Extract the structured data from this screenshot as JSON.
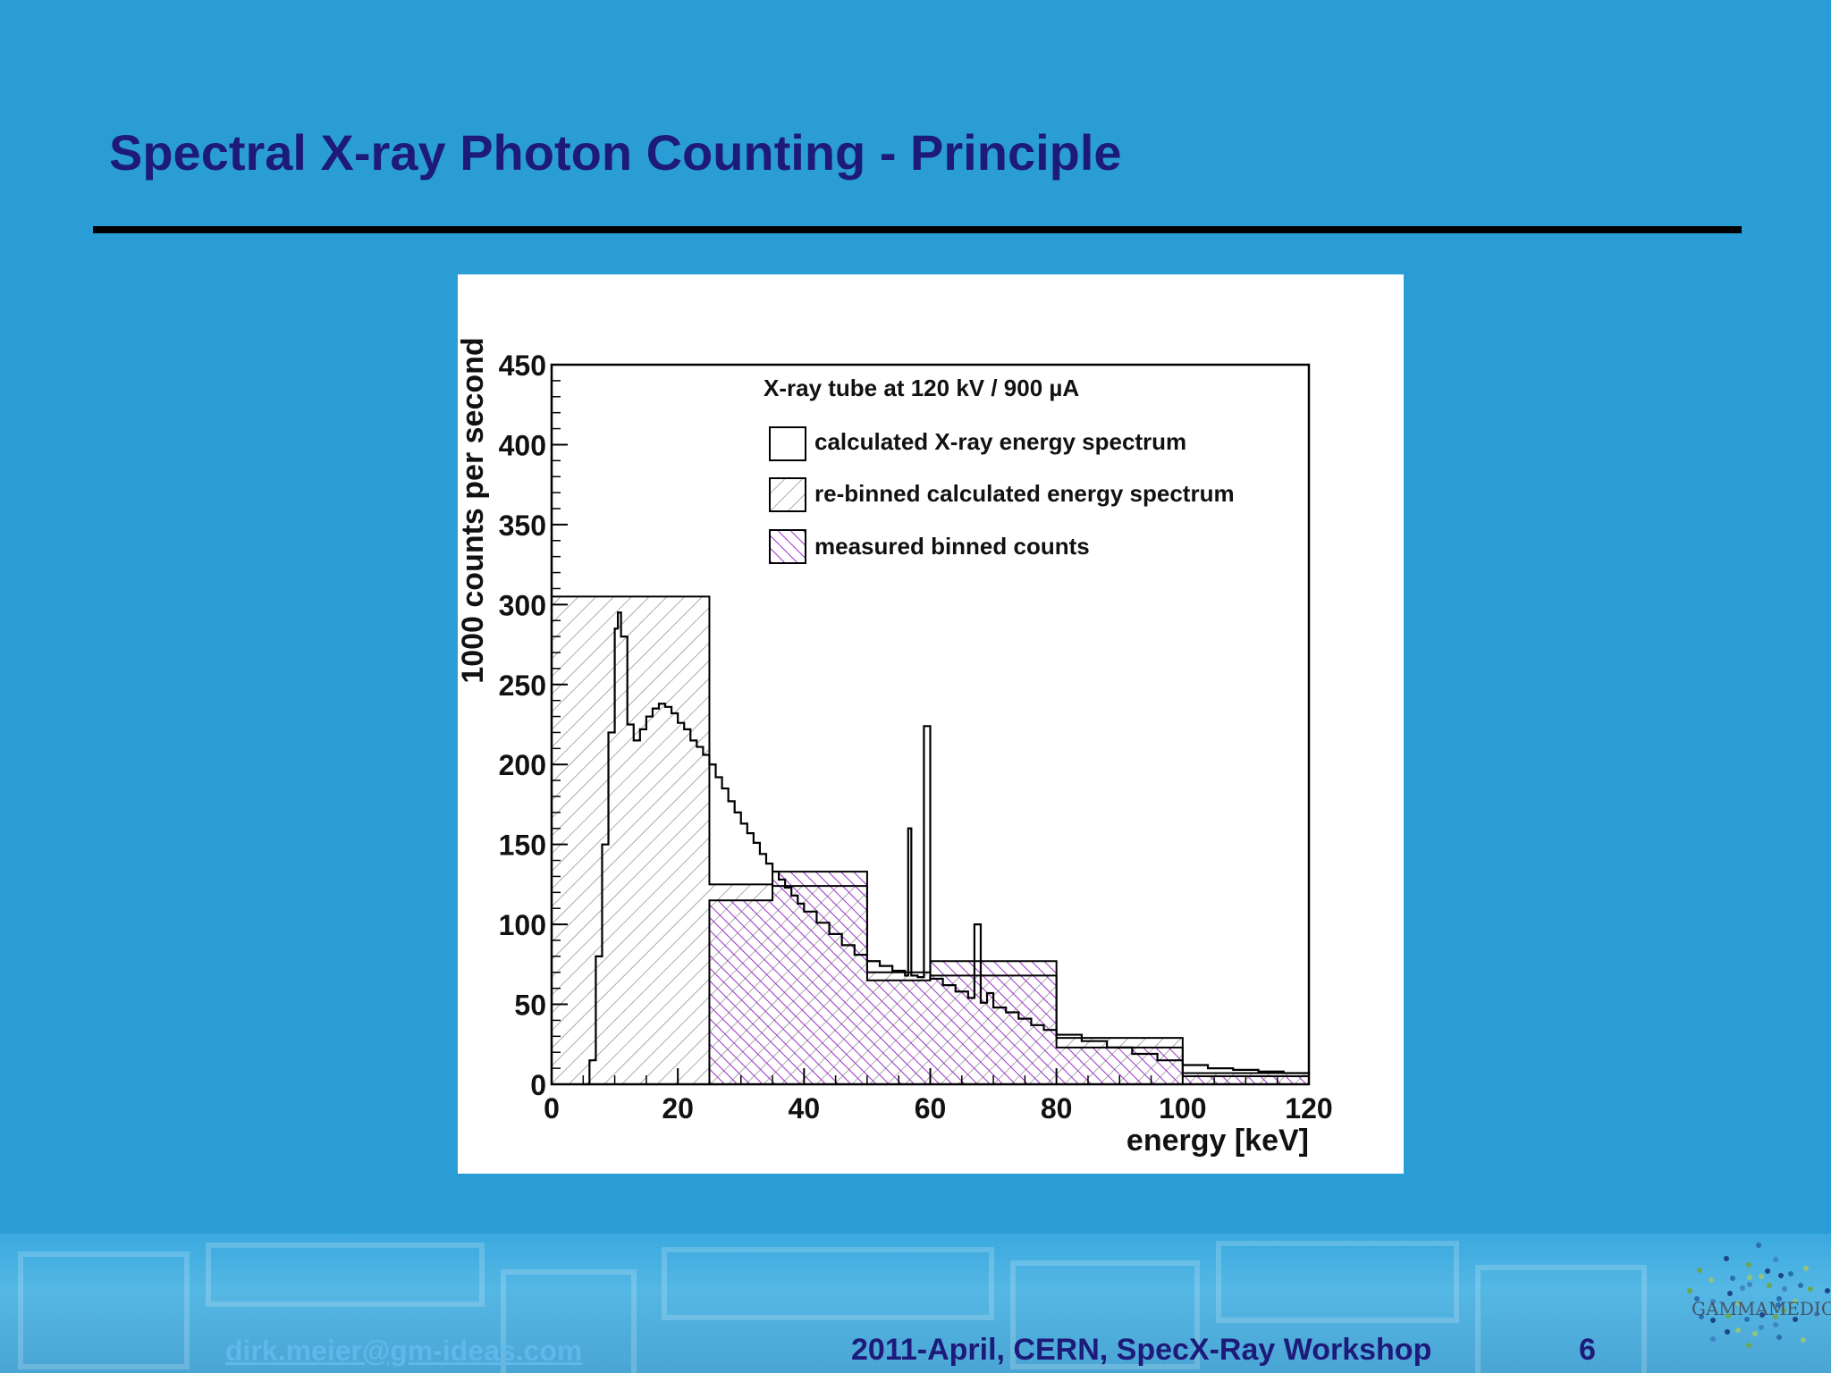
{
  "slide": {
    "title": "Spectral X-ray Photon Counting - Principle"
  },
  "footer": {
    "email": "dirk.meier@gm-ideas.com",
    "event": "2011-April, CERN, SpecX-Ray  Workshop",
    "page": "6"
  },
  "logo": {
    "text": "GAMMAMEDICA",
    "icon": "gammamedica-dots-logo"
  },
  "colors": {
    "background": "#2a9dd7",
    "title": "#1d1a7a",
    "measured_hatch": "#9b2fc9"
  },
  "chart_data": {
    "type": "histogram",
    "title": "X-ray tube at 120 kV / 900 µA",
    "xlabel": "energy [keV]",
    "ylabel": "1000 counts per second",
    "xlim": [
      0,
      120
    ],
    "ylim": [
      0,
      450
    ],
    "xticks": [
      0,
      20,
      40,
      60,
      80,
      100,
      120
    ],
    "yticks": [
      0,
      50,
      100,
      150,
      200,
      250,
      300,
      350,
      400,
      450
    ],
    "legend_position": "top-right",
    "series": [
      {
        "name": "calculated X-ray energy spectrum",
        "style": "outline",
        "points": [
          [
            5,
            0
          ],
          [
            6,
            15
          ],
          [
            7,
            80
          ],
          [
            8,
            150
          ],
          [
            9,
            220
          ],
          [
            10,
            285
          ],
          [
            10.5,
            295
          ],
          [
            11,
            280
          ],
          [
            12,
            225
          ],
          [
            13,
            215
          ],
          [
            14,
            222
          ],
          [
            15,
            230
          ],
          [
            16,
            235
          ],
          [
            17,
            238
          ],
          [
            18,
            236
          ],
          [
            19,
            232
          ],
          [
            20,
            226
          ],
          [
            21,
            222
          ],
          [
            22,
            215
          ],
          [
            23,
            211
          ],
          [
            24,
            206
          ],
          [
            25,
            200
          ],
          [
            26,
            192
          ],
          [
            27,
            185
          ],
          [
            28,
            177
          ],
          [
            29,
            170
          ],
          [
            30,
            163
          ],
          [
            31,
            157
          ],
          [
            32,
            151
          ],
          [
            33,
            144
          ],
          [
            34,
            138
          ],
          [
            35,
            133
          ],
          [
            36,
            128
          ],
          [
            37,
            123
          ],
          [
            38,
            118
          ],
          [
            39,
            113
          ],
          [
            40,
            108
          ],
          [
            42,
            101
          ],
          [
            44,
            94
          ],
          [
            46,
            87
          ],
          [
            48,
            81
          ],
          [
            50,
            77
          ],
          [
            52,
            74
          ],
          [
            54,
            71
          ],
          [
            56,
            68
          ],
          [
            56.5,
            160
          ],
          [
            57,
            68
          ],
          [
            58,
            67
          ],
          [
            59,
            224
          ],
          [
            60,
            66
          ],
          [
            62,
            62
          ],
          [
            64,
            58
          ],
          [
            66,
            54
          ],
          [
            67,
            100
          ],
          [
            68,
            51
          ],
          [
            69,
            57
          ],
          [
            70,
            48
          ],
          [
            72,
            45
          ],
          [
            74,
            41
          ],
          [
            76,
            37
          ],
          [
            78,
            34
          ],
          [
            80,
            31
          ],
          [
            84,
            27
          ],
          [
            88,
            23
          ],
          [
            92,
            19
          ],
          [
            96,
            15
          ],
          [
            100,
            12
          ],
          [
            104,
            10
          ],
          [
            108,
            9
          ],
          [
            112,
            8
          ],
          [
            116,
            7
          ],
          [
            120,
            6
          ]
        ]
      },
      {
        "name": "re-binned calculated energy spectrum",
        "style": "grey-hatch",
        "bins": [
          [
            0,
            25,
            305
          ],
          [
            25,
            35,
            125
          ],
          [
            35,
            50,
            124
          ],
          [
            50,
            60,
            70
          ],
          [
            60,
            80,
            68
          ],
          [
            80,
            100,
            29
          ],
          [
            100,
            120,
            7
          ]
        ]
      },
      {
        "name": "measured binned counts",
        "style": "purple-hatch",
        "bins": [
          [
            25,
            35,
            115
          ],
          [
            35,
            50,
            133
          ],
          [
            50,
            60,
            65
          ],
          [
            60,
            80,
            77
          ],
          [
            80,
            100,
            23
          ],
          [
            100,
            120,
            5
          ]
        ]
      }
    ]
  }
}
